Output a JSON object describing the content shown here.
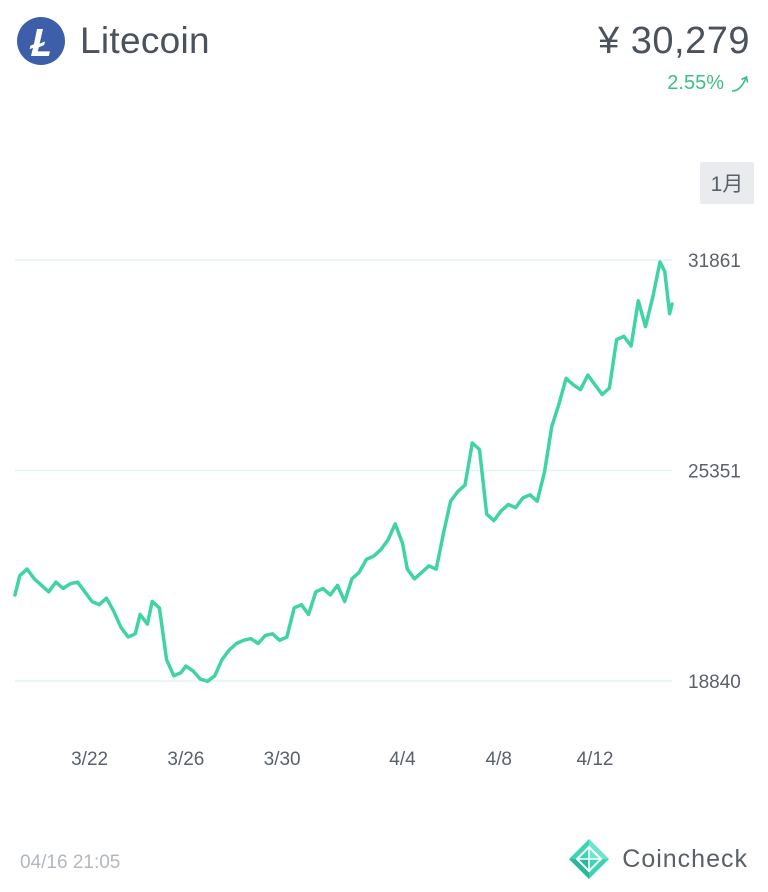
{
  "header": {
    "coin_name": "Litecoin",
    "price": "¥ 30,279",
    "change": "2.55%",
    "change_direction": "up",
    "colors": {
      "logo": "#3d5ea8",
      "positive": "#3cbf86"
    }
  },
  "period_button": "1月",
  "footer": {
    "timestamp": "04/16 21:05",
    "brand": "Coincheck"
  },
  "chart_data": {
    "type": "line",
    "title": "",
    "xlabel": "",
    "ylabel": "",
    "line_color": "#3fd3a5",
    "grid": true,
    "y_ticks": [
      18840,
      25351,
      31861
    ],
    "ylim": [
      18840,
      31861
    ],
    "x_ticks": [
      {
        "label": "3/22",
        "day": 22
      },
      {
        "label": "3/26",
        "day": 26
      },
      {
        "label": "3/30",
        "day": 30
      },
      {
        "label": "4/4",
        "day": 35
      },
      {
        "label": "4/8",
        "day": 39
      },
      {
        "label": "4/12",
        "day": 43
      }
    ],
    "xlim": [
      18.9,
      46.2
    ],
    "series": [
      {
        "points": [
          [
            18.9,
            21500
          ],
          [
            19.1,
            22100
          ],
          [
            19.4,
            22300
          ],
          [
            19.7,
            22000
          ],
          [
            20.0,
            21800
          ],
          [
            20.3,
            21600
          ],
          [
            20.6,
            21900
          ],
          [
            20.9,
            21700
          ],
          [
            21.2,
            21850
          ],
          [
            21.5,
            21900
          ],
          [
            21.8,
            21600
          ],
          [
            22.1,
            21300
          ],
          [
            22.4,
            21200
          ],
          [
            22.7,
            21400
          ],
          [
            23.0,
            21000
          ],
          [
            23.3,
            20500
          ],
          [
            23.6,
            20200
          ],
          [
            23.9,
            20300
          ],
          [
            24.1,
            20900
          ],
          [
            24.4,
            20600
          ],
          [
            24.6,
            21300
          ],
          [
            24.9,
            21100
          ],
          [
            25.2,
            19500
          ],
          [
            25.5,
            19000
          ],
          [
            25.8,
            19100
          ],
          [
            26.0,
            19300
          ],
          [
            26.3,
            19150
          ],
          [
            26.6,
            18900
          ],
          [
            26.9,
            18830
          ],
          [
            27.2,
            19000
          ],
          [
            27.5,
            19500
          ],
          [
            27.8,
            19800
          ],
          [
            28.1,
            20000
          ],
          [
            28.4,
            20100
          ],
          [
            28.7,
            20150
          ],
          [
            29.0,
            20000
          ],
          [
            29.3,
            20250
          ],
          [
            29.6,
            20300
          ],
          [
            29.9,
            20100
          ],
          [
            30.2,
            20200
          ],
          [
            30.5,
            21100
          ],
          [
            30.8,
            21200
          ],
          [
            31.1,
            20900
          ],
          [
            31.4,
            21600
          ],
          [
            31.7,
            21700
          ],
          [
            32.0,
            21500
          ],
          [
            32.3,
            21800
          ],
          [
            32.6,
            21300
          ],
          [
            32.9,
            22000
          ],
          [
            33.2,
            22200
          ],
          [
            33.5,
            22600
          ],
          [
            33.8,
            22700
          ],
          [
            34.1,
            22900
          ],
          [
            34.4,
            23200
          ],
          [
            34.7,
            23700
          ],
          [
            35.0,
            23100
          ],
          [
            35.2,
            22300
          ],
          [
            35.5,
            22000
          ],
          [
            35.8,
            22200
          ],
          [
            36.1,
            22400
          ],
          [
            36.4,
            22300
          ],
          [
            36.7,
            23400
          ],
          [
            37.0,
            24400
          ],
          [
            37.3,
            24700
          ],
          [
            37.6,
            24900
          ],
          [
            37.9,
            26200
          ],
          [
            38.2,
            26000
          ],
          [
            38.5,
            24000
          ],
          [
            38.8,
            23800
          ],
          [
            39.1,
            24100
          ],
          [
            39.4,
            24300
          ],
          [
            39.7,
            24200
          ],
          [
            40.0,
            24500
          ],
          [
            40.3,
            24600
          ],
          [
            40.6,
            24400
          ],
          [
            40.9,
            25300
          ],
          [
            41.2,
            26700
          ],
          [
            41.5,
            27400
          ],
          [
            41.8,
            28200
          ],
          [
            42.1,
            28000
          ],
          [
            42.4,
            27850
          ],
          [
            42.7,
            28300
          ],
          [
            43.0,
            28000
          ],
          [
            43.3,
            27700
          ],
          [
            43.6,
            27900
          ],
          [
            43.9,
            29400
          ],
          [
            44.2,
            29500
          ],
          [
            44.5,
            29200
          ],
          [
            44.8,
            30600
          ],
          [
            45.1,
            29800
          ],
          [
            45.4,
            30700
          ],
          [
            45.7,
            31800
          ],
          [
            45.9,
            31500
          ],
          [
            46.1,
            30200
          ],
          [
            46.2,
            30500
          ]
        ]
      }
    ]
  }
}
